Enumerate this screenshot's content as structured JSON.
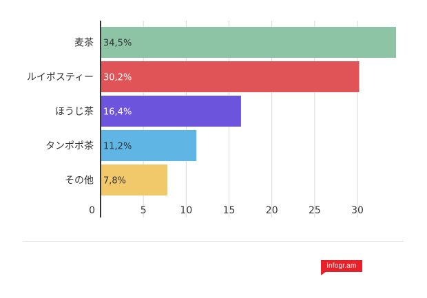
{
  "brand": {
    "badge_text": "infogr.am",
    "badge_color": "#e8202a"
  },
  "chart_data": {
    "type": "bar",
    "orientation": "horizontal",
    "categories": [
      "麦茶",
      "ルイボスティー",
      "ほうじ茶",
      "タンポポ茶",
      "その他"
    ],
    "values": [
      34.5,
      30.2,
      16.4,
      11.2,
      7.8
    ],
    "value_labels": [
      "34,5%",
      "30,2%",
      "16,4%",
      "11,2%",
      "7,8%"
    ],
    "bar_colors": [
      "#8cc4a5",
      "#e05457",
      "#6c54dd",
      "#5fb6e5",
      "#f1c96a"
    ],
    "label_colors": [
      "#333333",
      "#ffffff",
      "#ffffff",
      "#333333",
      "#333333"
    ],
    "x_ticks": [
      0,
      5,
      10,
      15,
      20,
      25,
      30
    ],
    "xlim": [
      0,
      34.5
    ],
    "grid": true,
    "title": "",
    "xlabel": "",
    "ylabel": ""
  }
}
